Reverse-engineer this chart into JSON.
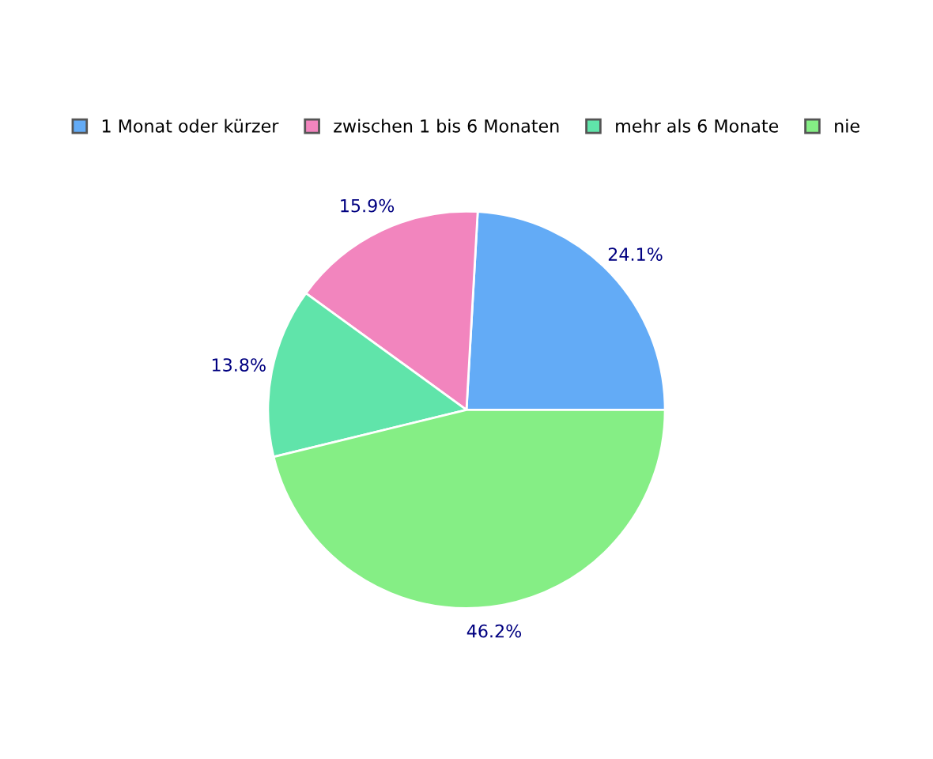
{
  "chart_data": {
    "type": "pie",
    "categories": [
      "1 Monat oder kürzer",
      "zwischen 1 bis 6 Monaten",
      "mehr als 6 Monate",
      "nie"
    ],
    "values": [
      24.1,
      15.9,
      13.8,
      46.2
    ],
    "colors": [
      "#63abf6",
      "#f285be",
      "#60e4aa",
      "#85ee85"
    ],
    "value_labels": [
      "24.1%",
      "15.9%",
      "13.8%",
      "46.2%"
    ],
    "legend": "top"
  }
}
